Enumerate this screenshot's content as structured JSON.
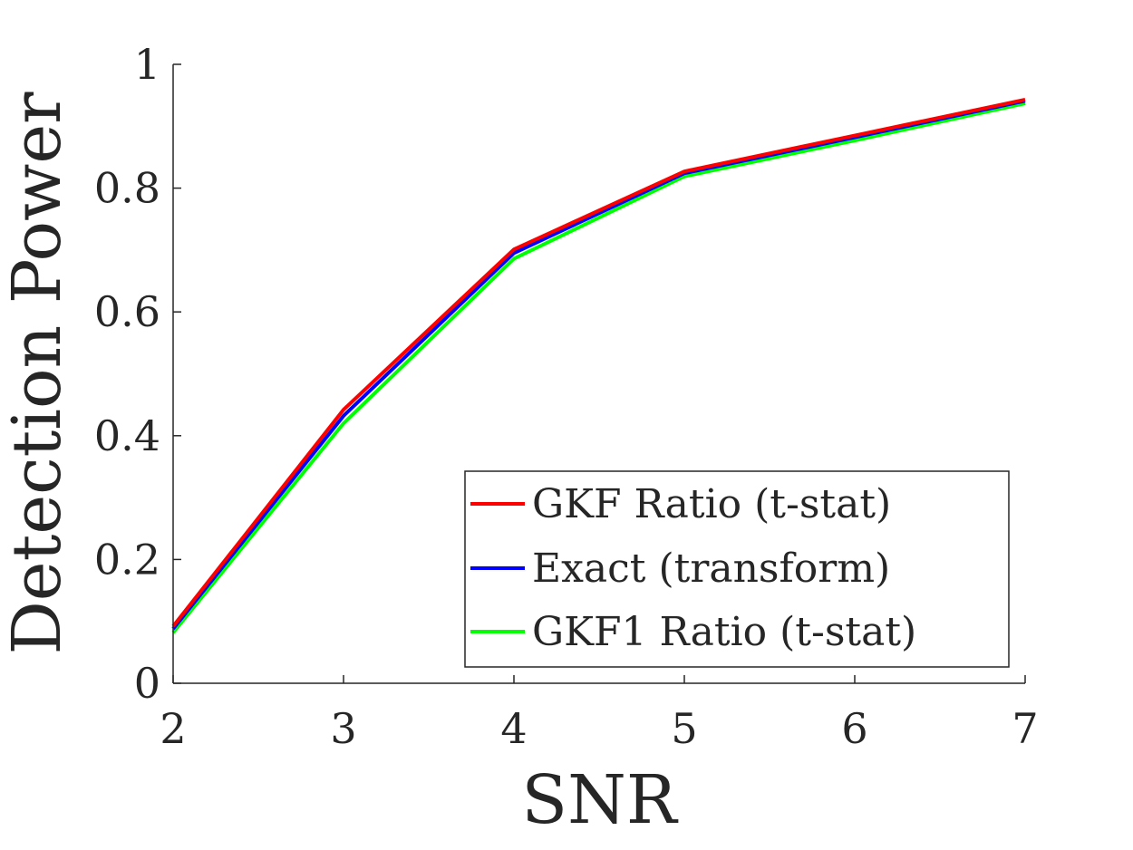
{
  "chart_data": {
    "type": "line",
    "title": "",
    "xlabel": "SNR",
    "ylabel": "Detection Power",
    "xlim": [
      2,
      7
    ],
    "ylim": [
      0,
      1
    ],
    "xticks": [
      2,
      3,
      4,
      5,
      6,
      7
    ],
    "yticks": [
      0,
      0.2,
      0.4,
      0.6,
      0.8,
      1
    ],
    "xtick_labels": [
      "2",
      "3",
      "4",
      "5",
      "6",
      "7"
    ],
    "ytick_labels": [
      "0",
      "0.2",
      "0.4",
      "0.6",
      "0.8",
      "1"
    ],
    "grid": false,
    "legend_position": "bottom-right",
    "x": [
      2,
      3,
      4,
      5,
      6,
      7
    ],
    "series": [
      {
        "name": "GKF Ratio (t-stat)",
        "color": "#ff0000",
        "values": [
          0.092,
          0.442,
          0.701,
          0.827,
          0.885,
          0.943
        ]
      },
      {
        "name": "Exact (transform)",
        "color": "#0000ff",
        "values": [
          0.088,
          0.432,
          0.695,
          0.824,
          0.882,
          0.941
        ]
      },
      {
        "name": "GKF1 Ratio (t-stat)",
        "color": "#00ff00",
        "values": [
          0.082,
          0.42,
          0.686,
          0.819,
          0.877,
          0.937
        ]
      }
    ]
  }
}
